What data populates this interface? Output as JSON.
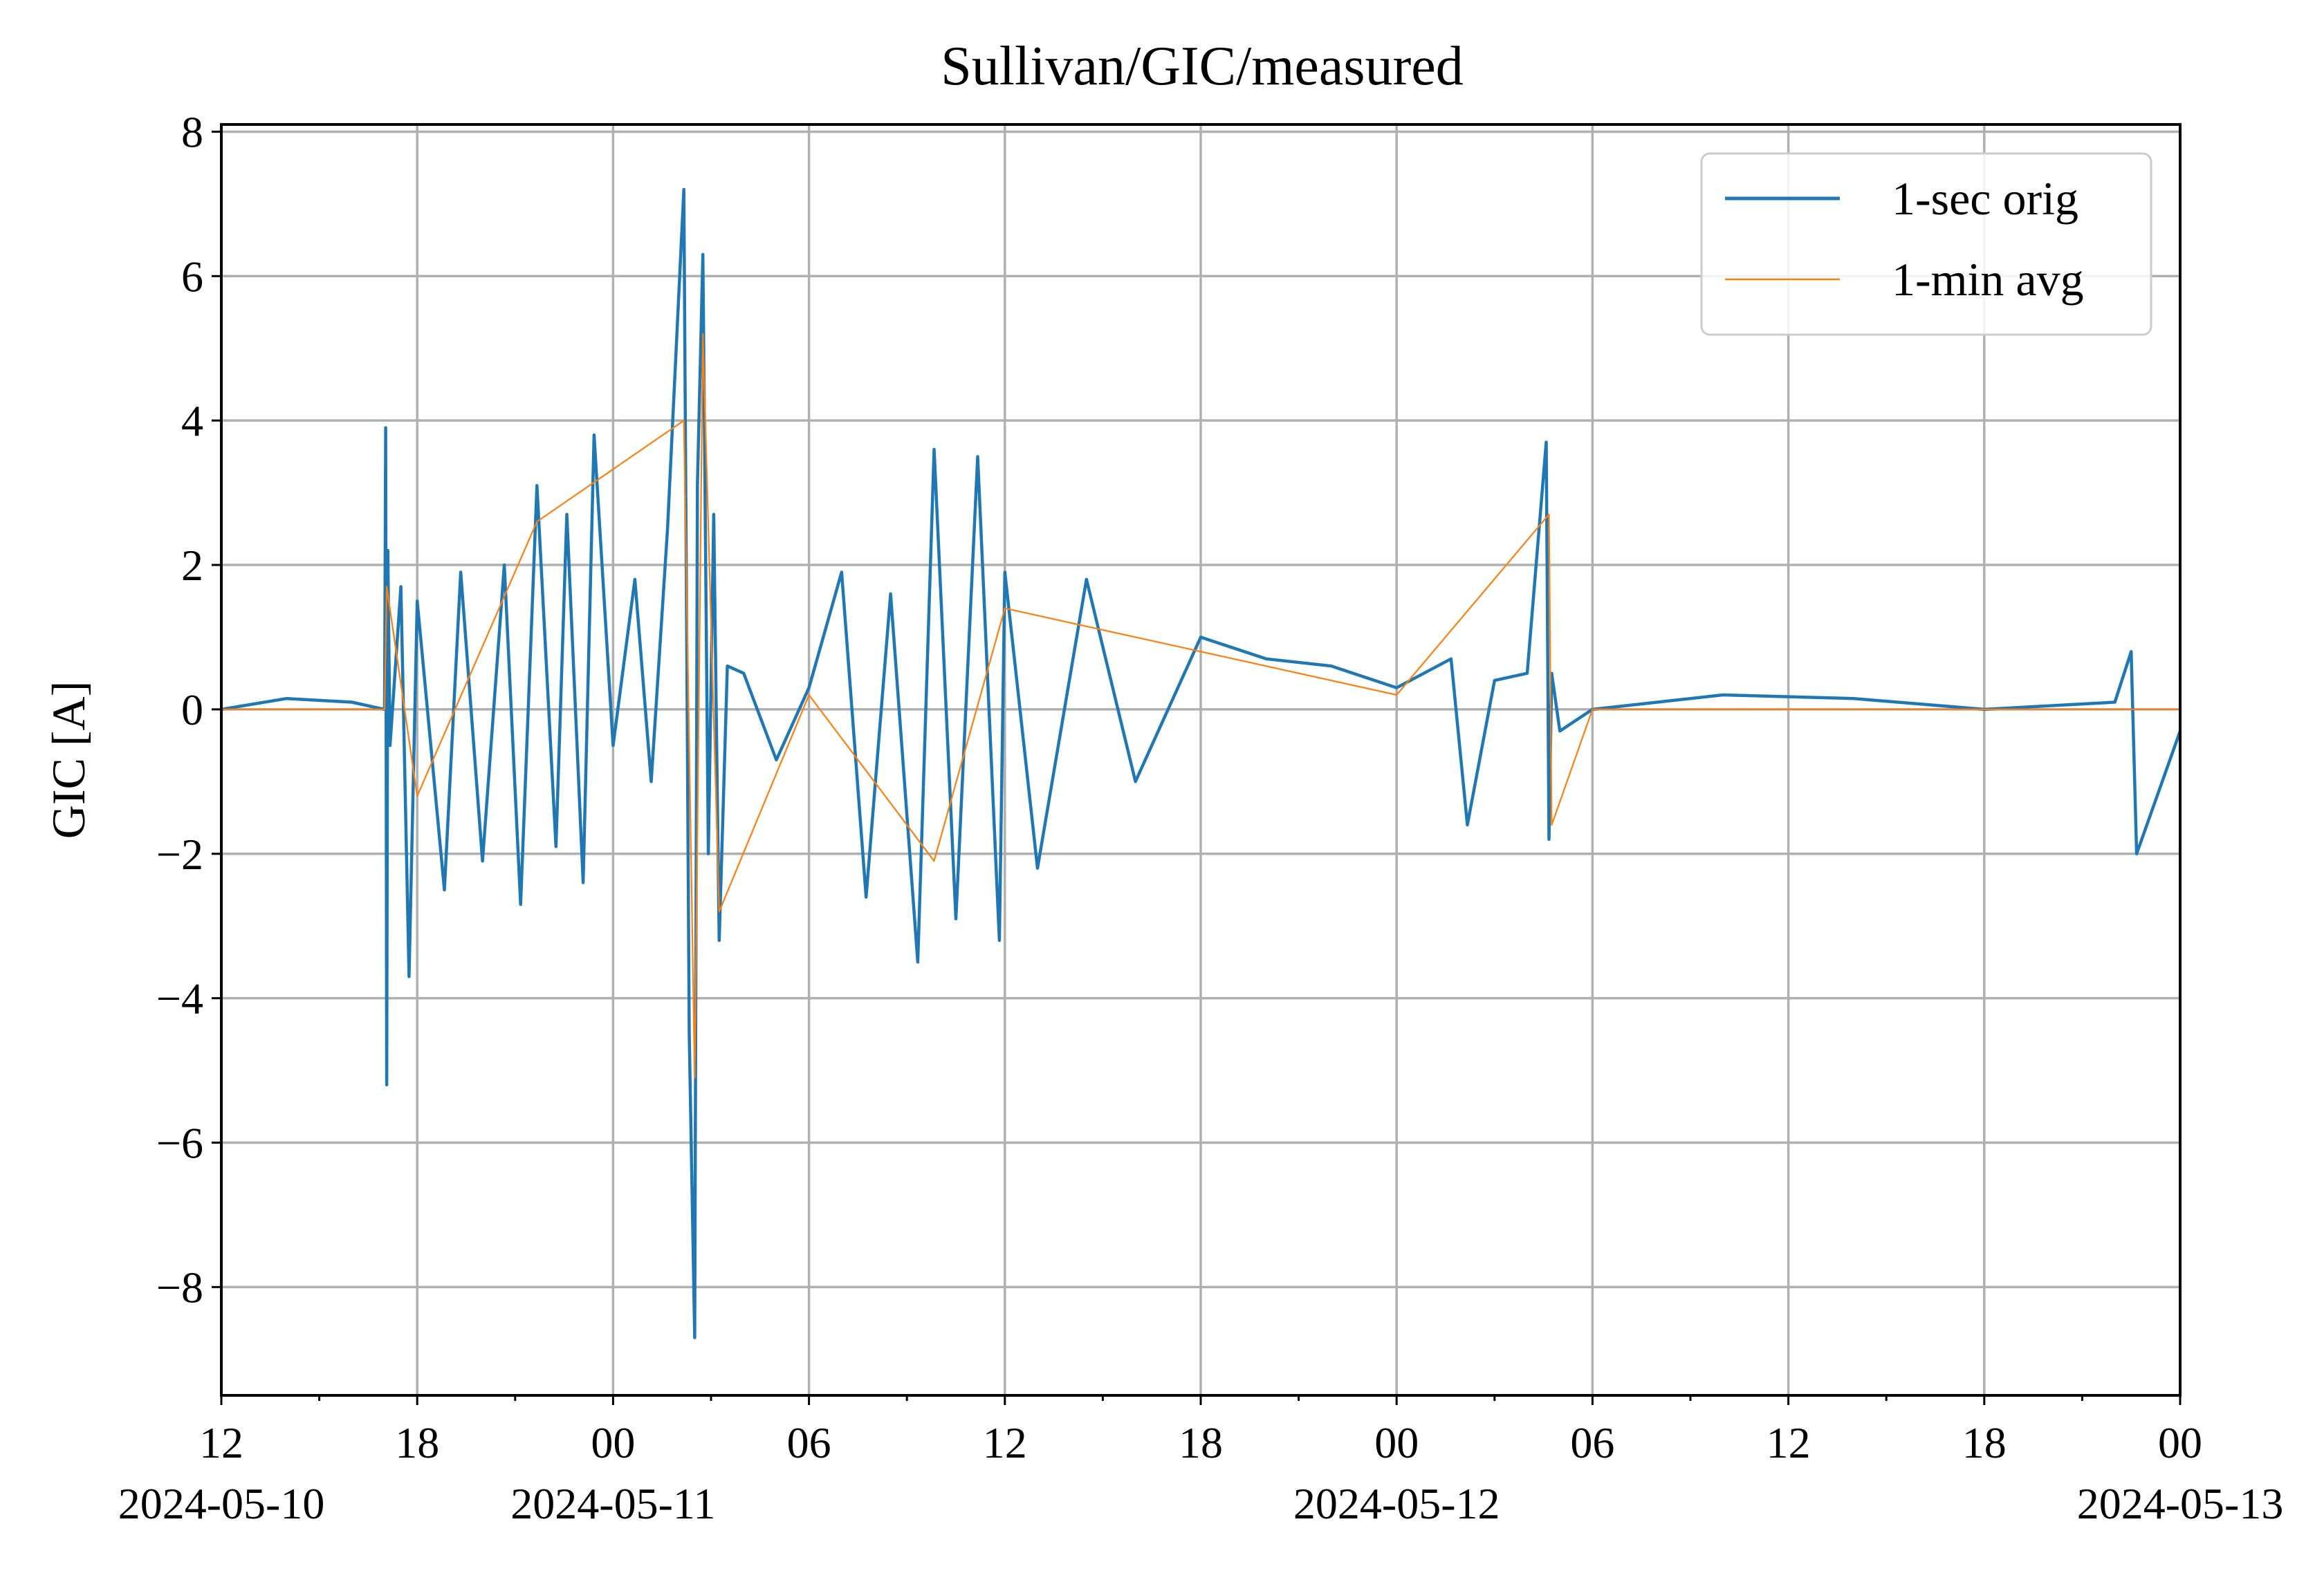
{
  "chart_data": {
    "type": "line",
    "title": "Sullivan/GIC/measured",
    "ylabel": "GIC [A]",
    "xlabel": "",
    "xlim": [
      "2024-05-10 12:00",
      "2024-05-13 00:00"
    ],
    "ylim": [
      -9.5,
      8.1
    ],
    "yticks": [
      8,
      6,
      4,
      2,
      0,
      -2,
      -4,
      -6,
      -8
    ],
    "ytick_labels": [
      "8",
      "6",
      "4",
      "2",
      "0",
      "−2",
      "−4",
      "−6",
      "−8"
    ],
    "xticks_major": [
      {
        "hours": 0,
        "time": "12",
        "date": "2024-05-10"
      },
      {
        "hours": 6,
        "time": "18",
        "date": ""
      },
      {
        "hours": 12,
        "time": "00",
        "date": "2024-05-11"
      },
      {
        "hours": 18,
        "time": "06",
        "date": ""
      },
      {
        "hours": 24,
        "time": "12",
        "date": ""
      },
      {
        "hours": 30,
        "time": "18",
        "date": ""
      },
      {
        "hours": 36,
        "time": "00",
        "date": "2024-05-12"
      },
      {
        "hours": 42,
        "time": "06",
        "date": ""
      },
      {
        "hours": 48,
        "time": "12",
        "date": ""
      },
      {
        "hours": 54,
        "time": "18",
        "date": ""
      },
      {
        "hours": 60,
        "time": "00",
        "date": "2024-05-13"
      }
    ],
    "xticks_minor_hours": [
      3,
      9,
      15,
      21,
      27,
      33,
      39,
      45,
      51,
      57
    ],
    "grid": true,
    "legend_position": "upper-right",
    "series": [
      {
        "name": "1-sec orig",
        "color": "#1f77b4",
        "time": [
          "2024-05-10 12:00",
          "2024-05-10 14:00",
          "2024-05-10 16:00",
          "2024-05-10 17:00",
          "2024-05-10 17:02",
          "2024-05-10 17:04",
          "2024-05-10 17:06",
          "2024-05-10 17:10",
          "2024-05-10 17:30",
          "2024-05-10 17:45",
          "2024-05-10 18:00",
          "2024-05-10 18:50",
          "2024-05-10 19:20",
          "2024-05-10 20:00",
          "2024-05-10 20:40",
          "2024-05-10 21:10",
          "2024-05-10 21:40",
          "2024-05-10 22:15",
          "2024-05-10 22:35",
          "2024-05-10 23:05",
          "2024-05-10 23:25",
          "2024-05-11 00:00",
          "2024-05-11 00:40",
          "2024-05-11 01:10",
          "2024-05-11 01:40",
          "2024-05-11 02:10",
          "2024-05-11 02:20",
          "2024-05-11 02:30",
          "2024-05-11 02:35",
          "2024-05-11 02:45",
          "2024-05-11 02:55",
          "2024-05-11 03:05",
          "2024-05-11 03:15",
          "2024-05-11 03:30",
          "2024-05-11 04:00",
          "2024-05-11 05:00",
          "2024-05-11 06:00",
          "2024-05-11 07:00",
          "2024-05-11 07:45",
          "2024-05-11 08:30",
          "2024-05-11 09:20",
          "2024-05-11 09:50",
          "2024-05-11 10:30",
          "2024-05-11 11:10",
          "2024-05-11 11:50",
          "2024-05-11 12:00",
          "2024-05-11 13:00",
          "2024-05-11 14:30",
          "2024-05-11 16:00",
          "2024-05-11 18:00",
          "2024-05-11 20:00",
          "2024-05-11 22:00",
          "2024-05-12 00:00",
          "2024-05-12 01:40",
          "2024-05-12 02:10",
          "2024-05-12 03:00",
          "2024-05-12 04:00",
          "2024-05-12 04:35",
          "2024-05-12 04:40",
          "2024-05-12 04:45",
          "2024-05-12 05:00",
          "2024-05-12 06:00",
          "2024-05-12 10:00",
          "2024-05-12 14:00",
          "2024-05-12 18:00",
          "2024-05-12 22:00",
          "2024-05-12 22:30",
          "2024-05-12 22:40",
          "2024-05-13 00:00"
        ],
        "values": [
          0.0,
          0.15,
          0.1,
          0.0,
          3.9,
          -5.2,
          2.2,
          -0.5,
          1.7,
          -3.7,
          1.5,
          -2.5,
          1.9,
          -2.1,
          2.0,
          -2.7,
          3.1,
          -1.9,
          2.7,
          -2.4,
          3.8,
          -0.5,
          1.8,
          -1.0,
          2.5,
          7.2,
          -4.5,
          -8.7,
          3.1,
          6.3,
          -2.0,
          2.7,
          -3.2,
          0.6,
          0.5,
          -0.7,
          0.3,
          1.9,
          -2.6,
          1.6,
          -3.5,
          3.6,
          -2.9,
          3.5,
          -3.2,
          1.9,
          -2.2,
          1.8,
          -1.0,
          1.0,
          0.7,
          0.6,
          0.3,
          0.7,
          -1.6,
          0.4,
          0.5,
          3.7,
          -1.8,
          0.5,
          -0.3,
          0.0,
          0.2,
          0.15,
          0.0,
          0.1,
          0.8,
          -2.0,
          -0.3
        ]
      },
      {
        "name": "1-min avg",
        "color": "#ff7f0e",
        "time": [
          "2024-05-10 12:00",
          "2024-05-10 17:00",
          "2024-05-10 17:04",
          "2024-05-10 18:00",
          "2024-05-10 21:40",
          "2024-05-11 02:10",
          "2024-05-11 02:30",
          "2024-05-11 02:45",
          "2024-05-11 03:15",
          "2024-05-11 06:00",
          "2024-05-11 09:50",
          "2024-05-11 12:00",
          "2024-05-12 00:00",
          "2024-05-12 04:40",
          "2024-05-12 04:45",
          "2024-05-12 06:00",
          "2024-05-13 00:00"
        ],
        "values": [
          0.0,
          0.0,
          1.7,
          -1.2,
          2.6,
          4.0,
          -5.1,
          5.2,
          -2.8,
          0.2,
          -2.1,
          1.4,
          0.2,
          2.7,
          -1.6,
          0.0,
          0.0
        ]
      }
    ]
  }
}
